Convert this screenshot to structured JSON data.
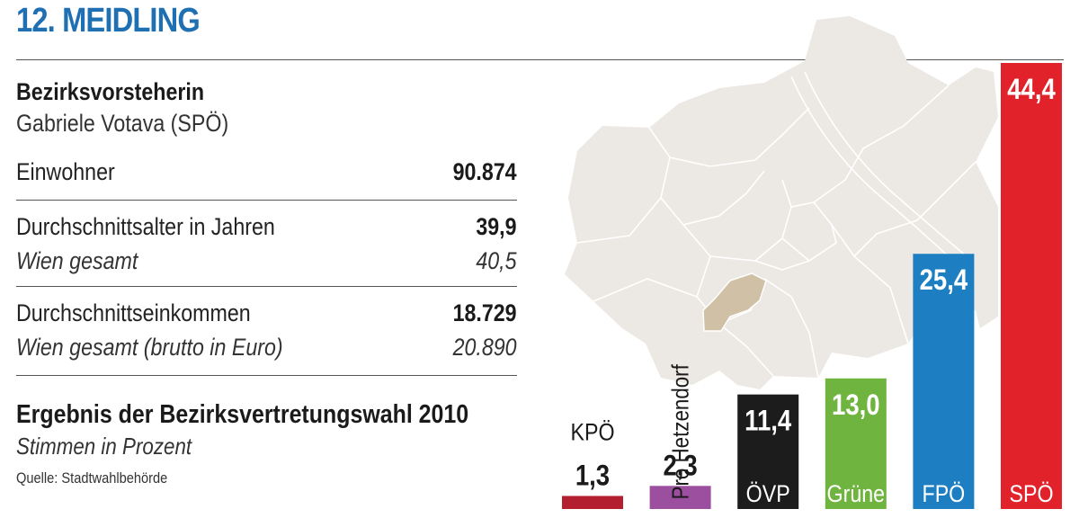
{
  "header": {
    "title": "12. MEIDLING"
  },
  "info": {
    "mayor_label": "Bezirksvorsteherin",
    "mayor_name": "Gabriele Votava (SPÖ)",
    "population": {
      "label": "Einwohner",
      "value": "90.874"
    },
    "avg_age": {
      "label": "Durchschnittsalter in Jahren",
      "value": "39,9",
      "vienna_label": "Wien gesamt",
      "vienna_value": "40,5"
    },
    "avg_income": {
      "label": "Durchschnittseinkommen",
      "value": "18.729",
      "vienna_label": "Wien gesamt (brutto in Euro)",
      "vienna_value": "20.890"
    }
  },
  "election": {
    "title": "Ergebnis der Bezirksvertretungswahl 2010",
    "subtitle": "Stimmen in Prozent",
    "source": "Quelle: Stadtwahlbehörde"
  },
  "colors": {
    "title": "#1f6fb3",
    "map_land": "#ece8e3",
    "map_district": "#cfc0a6",
    "map_border": "#ffffff"
  },
  "chart_data": {
    "type": "bar",
    "categories": [
      "KPÖ",
      "Pro Hetzendorf",
      "ÖVP",
      "Grüne",
      "FPÖ",
      "SPÖ"
    ],
    "values": [
      1.3,
      2.3,
      11.4,
      13.0,
      25.4,
      44.4
    ],
    "value_labels": [
      "1,3",
      "2,3",
      "11,4",
      "13,0",
      "25,4",
      "44,4"
    ],
    "colors": [
      "#b31f2e",
      "#9b4f9e",
      "#1c1c1c",
      "#6fb43f",
      "#1d7fc2",
      "#e2222b"
    ],
    "title": "",
    "xlabel": "",
    "ylabel": "",
    "ylim": [
      0,
      44.4
    ]
  }
}
